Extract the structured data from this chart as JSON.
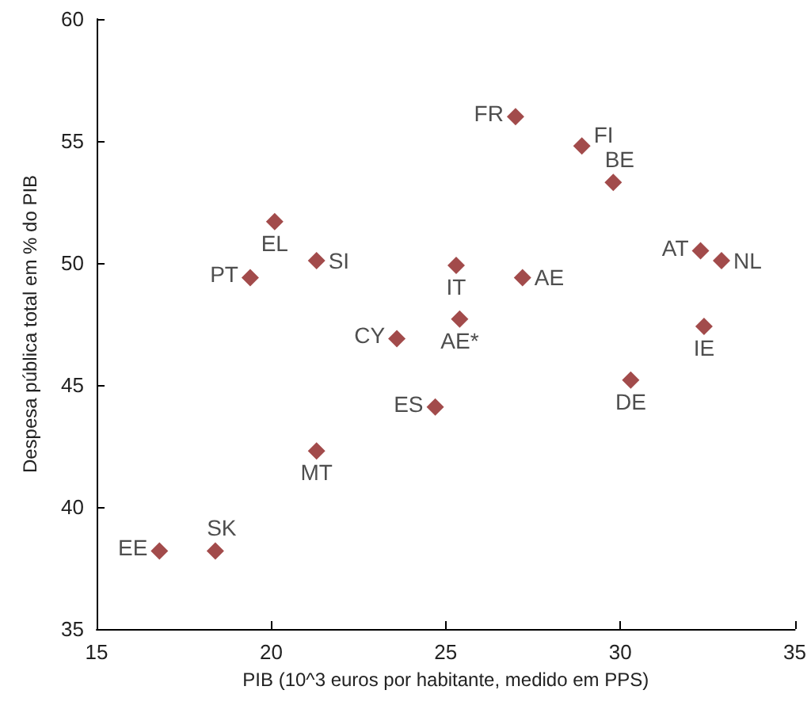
{
  "chart_data": {
    "type": "scatter",
    "xlabel": "PIB (10^3 euros por habitante, medido em PPS)",
    "ylabel": "Despesa pública total em % do PIB",
    "xlim": [
      15,
      35
    ],
    "xticks": [
      15,
      20,
      25,
      30,
      35
    ],
    "ylim": [
      35,
      60
    ],
    "yticks": [
      35,
      40,
      45,
      50,
      55,
      60
    ],
    "grid": false,
    "marker": "diamond",
    "series": [
      {
        "name": "EE",
        "color": "#8b1e1e",
        "x": [
          16.8
        ],
        "values": [
          38.2
        ]
      },
      {
        "name": "SK",
        "color": "#8b1e1e",
        "x": [
          18.4
        ],
        "values": [
          38.2
        ]
      },
      {
        "name": "PT",
        "color": "#8b1e1e",
        "x": [
          19.4
        ],
        "values": [
          49.4
        ]
      },
      {
        "name": "EL",
        "color": "#8b1e1e",
        "x": [
          20.1
        ],
        "values": [
          51.7
        ]
      },
      {
        "name": "SI",
        "color": "#8b1e1e",
        "x": [
          21.3
        ],
        "values": [
          50.1
        ]
      },
      {
        "name": "MT",
        "color": "#8b1e1e",
        "x": [
          21.3
        ],
        "values": [
          42.3
        ]
      },
      {
        "name": "CY",
        "color": "#8b1e1e",
        "x": [
          23.6
        ],
        "values": [
          46.9
        ]
      },
      {
        "name": "ES",
        "color": "#8b1e1e",
        "x": [
          24.7
        ],
        "values": [
          44.1
        ]
      },
      {
        "name": "IT",
        "color": "#8b1e1e",
        "x": [
          25.3
        ],
        "values": [
          49.9
        ]
      },
      {
        "name": "AE*",
        "color": "#8b1e1e",
        "x": [
          25.4
        ],
        "values": [
          47.7
        ]
      },
      {
        "name": "FR",
        "color": "#8b1e1e",
        "x": [
          27.0
        ],
        "values": [
          56.0
        ]
      },
      {
        "name": "AE",
        "color": "#8b1e1e",
        "x": [
          27.2
        ],
        "values": [
          49.4
        ]
      },
      {
        "name": "FI",
        "color": "#8b1e1e",
        "x": [
          28.9
        ],
        "values": [
          54.8
        ]
      },
      {
        "name": "BE",
        "color": "#8b1e1e",
        "x": [
          29.8
        ],
        "values": [
          53.3
        ]
      },
      {
        "name": "DE",
        "color": "#8b1e1e",
        "x": [
          30.3
        ],
        "values": [
          45.2
        ]
      },
      {
        "name": "AT",
        "color": "#8b1e1e",
        "x": [
          32.3
        ],
        "values": [
          50.5
        ]
      },
      {
        "name": "IE",
        "color": "#8b1e1e",
        "x": [
          32.4
        ],
        "values": [
          47.4
        ]
      },
      {
        "name": "NL",
        "color": "#8b1e1e",
        "x": [
          32.9
        ],
        "values": [
          50.1
        ]
      }
    ]
  }
}
